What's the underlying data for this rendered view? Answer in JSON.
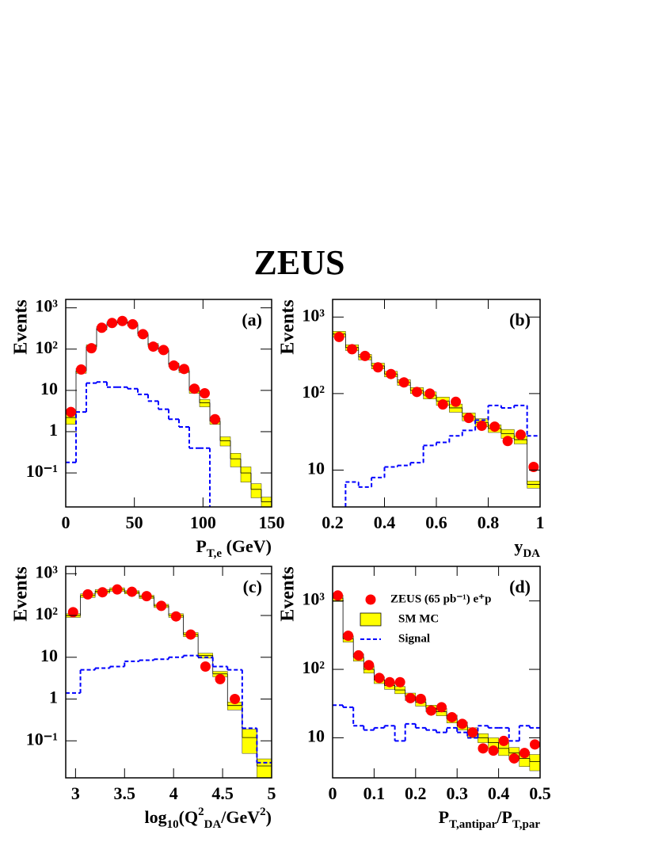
{
  "figure_title": "ZEUS",
  "chart_data": [
    {
      "type": "histogram",
      "panel_label": "(a)",
      "ylabel": "Events",
      "xlabel": [
        {
          "text": "P"
        },
        {
          "text": "T,e",
          "sub": true
        },
        {
          "text": " (GeV)"
        }
      ],
      "log_y": true,
      "xlim": [
        0,
        150
      ],
      "ylim": [
        0.015,
        1600
      ],
      "xticks": [
        0,
        50,
        100,
        150
      ],
      "yticks": [
        {
          "value": 0.1,
          "label": "10⁻¹"
        },
        1,
        10,
        {
          "value": 100,
          "label": "10²"
        },
        {
          "value": 1000,
          "label": "10³"
        }
      ],
      "bins": [
        0,
        7.5,
        15,
        22.5,
        30,
        37.5,
        45,
        52.5,
        60,
        67.5,
        75,
        82.5,
        90,
        97.5,
        105,
        112.5,
        120,
        127.5,
        135,
        142.5,
        150
      ],
      "series": [
        {
          "style": "markers",
          "color": "#ff0000",
          "values": [
            3,
            32,
            105,
            330,
            430,
            480,
            400,
            230,
            115,
            95,
            40,
            33,
            11,
            8.5,
            2,
            null,
            null,
            null,
            null,
            null
          ]
        },
        {
          "style": "band",
          "color": "#ffff00",
          "values": [
            2.2,
            30,
            115,
            320,
            420,
            470,
            400,
            230,
            125,
            95,
            42,
            30,
            10,
            5,
            1.8,
            0.6,
            0.22,
            0.1,
            0.04,
            0.02
          ],
          "errors": [
            0.7,
            4,
            12,
            30,
            35,
            40,
            35,
            20,
            12,
            8,
            4,
            3,
            1.5,
            1,
            0.3,
            0.15,
            0.08,
            0.04,
            0.015,
            0.006
          ]
        },
        {
          "style": "dashed-step",
          "color": "#0000ff",
          "values": [
            0.18,
            3,
            15,
            16,
            12,
            12,
            11,
            8,
            5.5,
            3.5,
            2,
            1.3,
            0.4,
            0.4,
            null,
            null,
            null,
            null,
            null,
            null
          ]
        }
      ]
    },
    {
      "type": "histogram",
      "panel_label": "(b)",
      "ylabel": "Events",
      "xlabel": [
        {
          "text": "y"
        },
        {
          "text": "DA",
          "sub": true
        }
      ],
      "log_y": true,
      "xlim": [
        0.2,
        1
      ],
      "ylim": [
        3.3,
        1700
      ],
      "xticks": [
        0.2,
        0.4,
        0.6,
        0.8,
        1
      ],
      "yticks": [
        10,
        {
          "value": 100,
          "label": "10²"
        },
        {
          "value": 1000,
          "label": "10³"
        }
      ],
      "bins": [
        0.2,
        0.25,
        0.3,
        0.35,
        0.4,
        0.45,
        0.5,
        0.55,
        0.6,
        0.65,
        0.7,
        0.75,
        0.8,
        0.85,
        0.9,
        0.95,
        1
      ],
      "series": [
        {
          "style": "markers",
          "color": "#ff0000",
          "values": [
            550,
            380,
            310,
            220,
            180,
            140,
            105,
            100,
            72,
            78,
            48,
            38,
            37,
            24,
            29,
            11
          ]
        },
        {
          "style": "band",
          "color": "#ffff00",
          "values": [
            600,
            400,
            300,
            230,
            180,
            140,
            110,
            95,
            80,
            65,
            50,
            42,
            35,
            30,
            25,
            6.5
          ],
          "errors": [
            50,
            35,
            25,
            20,
            15,
            12,
            10,
            10,
            10,
            8,
            6,
            5,
            4,
            4,
            3,
            0.7
          ]
        },
        {
          "style": "dashed-step",
          "color": "#0000ff",
          "values": [
            null,
            7,
            6,
            8,
            11,
            11.5,
            12.5,
            21,
            23,
            28,
            33,
            45,
            70,
            65,
            70,
            28
          ]
        }
      ]
    },
    {
      "type": "histogram",
      "panel_label": "(c)",
      "ylabel": "Events",
      "xlabel": [
        {
          "text": "log"
        },
        {
          "text": "10",
          "sub": true
        },
        {
          "text": "(Q"
        },
        {
          "text": "2",
          "sup": true
        },
        {
          "text": "DA",
          "sub": true
        },
        {
          "text": "/GeV"
        },
        {
          "text": "2",
          "sup": true
        },
        {
          "text": ")"
        }
      ],
      "log_y": true,
      "xlim": [
        2.9,
        5
      ],
      "ylim": [
        0.013,
        1500
      ],
      "xticks": [
        3,
        3.5,
        4,
        4.5,
        5
      ],
      "yticks": [
        {
          "value": 0.1,
          "label": "10⁻¹"
        },
        1,
        10,
        {
          "value": 100,
          "label": "10²"
        },
        {
          "value": 1000,
          "label": "10³"
        }
      ],
      "bins": [
        2.9,
        3.05,
        3.2,
        3.35,
        3.5,
        3.65,
        3.8,
        3.95,
        4.1,
        4.25,
        4.4,
        4.55,
        4.7,
        4.85,
        5
      ],
      "series": [
        {
          "style": "markers",
          "color": "#ff0000",
          "values": [
            120,
            320,
            360,
            420,
            370,
            290,
            170,
            95,
            35,
            6,
            3,
            1,
            null,
            null
          ]
        },
        {
          "style": "band",
          "color": "#ffff00",
          "values": [
            100,
            300,
            380,
            420,
            360,
            280,
            170,
            100,
            35,
            11,
            4,
            0.7,
            0.12,
            0.025
          ],
          "errors": [
            10,
            30,
            35,
            40,
            30,
            25,
            15,
            10,
            4,
            1.5,
            0.6,
            0.15,
            0.07,
            0.012
          ]
        },
        {
          "style": "dashed-step",
          "color": "#0000ff",
          "values": [
            1.4,
            5,
            5.5,
            6,
            8,
            8.5,
            9,
            10,
            11,
            10,
            6,
            5,
            0.2,
            0.03
          ]
        }
      ]
    },
    {
      "type": "histogram",
      "panel_label": "(d)",
      "ylabel": "Events",
      "xlabel": [
        {
          "text": "P"
        },
        {
          "text": "T,antipar",
          "sub": true
        },
        {
          "text": "/P"
        },
        {
          "text": "T,par",
          "sub": true
        }
      ],
      "log_y": true,
      "xlim": [
        0,
        0.5
      ],
      "ylim": [
        2.6,
        3200
      ],
      "xticks": [
        0,
        0.1,
        0.2,
        0.3,
        0.4,
        0.5
      ],
      "yticks": [
        10,
        {
          "value": 100,
          "label": "10²"
        },
        {
          "value": 1000,
          "label": "10³"
        }
      ],
      "legend": "upper right",
      "bins": [
        0,
        0.025,
        0.05,
        0.075,
        0.1,
        0.125,
        0.15,
        0.175,
        0.2,
        0.225,
        0.25,
        0.275,
        0.3,
        0.325,
        0.35,
        0.375,
        0.4,
        0.425,
        0.45,
        0.475,
        0.5
      ],
      "series": [
        {
          "name": "ZEUS (65 pb⁻¹) e⁺p",
          "style": "markers",
          "color": "#ff0000",
          "values": [
            1200,
            310,
            160,
            115,
            75,
            65,
            65,
            38,
            37,
            25,
            28,
            20,
            16,
            12,
            7,
            6.5,
            9,
            5,
            6,
            8
          ]
        },
        {
          "name": "SM MC",
          "style": "band",
          "color": "#ffff00",
          "values": [
            1100,
            280,
            150,
            100,
            70,
            58,
            50,
            40,
            33,
            27,
            24,
            19,
            15,
            12,
            10,
            8.5,
            7,
            6,
            5,
            4.5
          ],
          "errors": [
            120,
            30,
            18,
            12,
            8,
            7,
            6,
            5,
            4,
            3,
            3,
            2.5,
            2,
            2,
            1.5,
            1.5,
            1.5,
            1.2,
            1.2,
            1.2
          ]
        },
        {
          "name": "Signal",
          "style": "dashed-step",
          "color": "#0000ff",
          "values": [
            30,
            28,
            15,
            13,
            14,
            15,
            9,
            16,
            14,
            13,
            12,
            14,
            12,
            10,
            15,
            14,
            14,
            9,
            15,
            14
          ]
        }
      ]
    }
  ]
}
